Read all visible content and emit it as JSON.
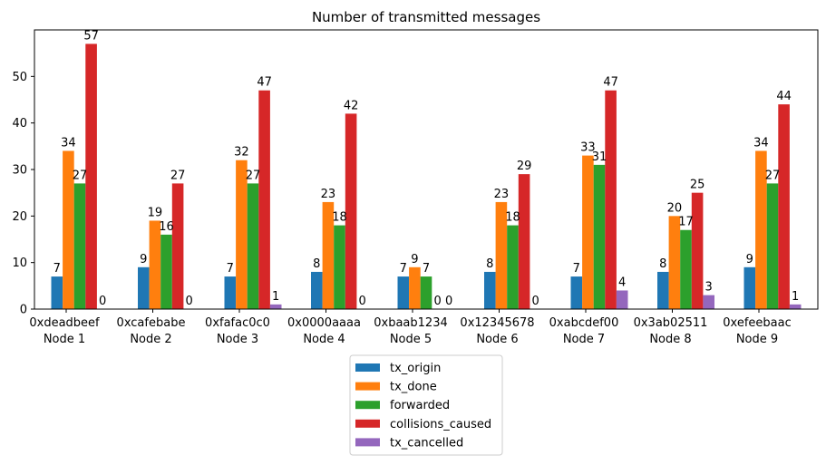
{
  "chart_data": {
    "type": "bar",
    "title": "Number of transmitted messages",
    "xlabel": "",
    "ylabel": "",
    "ylim": [
      0,
      60
    ],
    "yticks": [
      0,
      10,
      20,
      30,
      40,
      50
    ],
    "categories": [
      [
        "0xdeadbeef",
        "Node 1"
      ],
      [
        "0xcafebabe",
        "Node 2"
      ],
      [
        "0xfafac0c0",
        "Node 3"
      ],
      [
        "0x0000aaaa",
        "Node 4"
      ],
      [
        "0xbaab1234",
        "Node 5"
      ],
      [
        "0x12345678",
        "Node 6"
      ],
      [
        "0xabcdef00",
        "Node 7"
      ],
      [
        "0x3ab02511",
        "Node 8"
      ],
      [
        "0xefeebaac",
        "Node 9"
      ]
    ],
    "series": [
      {
        "name": "tx_origin",
        "color": "#1f77b4",
        "values": [
          7,
          9,
          7,
          8,
          7,
          8,
          7,
          8,
          9
        ]
      },
      {
        "name": "tx_done",
        "color": "#ff7f0e",
        "values": [
          34,
          19,
          32,
          23,
          9,
          23,
          33,
          20,
          34
        ]
      },
      {
        "name": "forwarded",
        "color": "#2ca02c",
        "values": [
          27,
          16,
          27,
          18,
          7,
          18,
          31,
          17,
          27
        ]
      },
      {
        "name": "collisions_caused",
        "color": "#d62728",
        "values": [
          57,
          27,
          47,
          42,
          0,
          29,
          47,
          25,
          44
        ]
      },
      {
        "name": "tx_cancelled",
        "color": "#9467bd",
        "values": [
          0,
          0,
          1,
          0,
          0,
          0,
          4,
          3,
          1
        ]
      }
    ],
    "grid": false,
    "legend_position": "bottom-center"
  }
}
